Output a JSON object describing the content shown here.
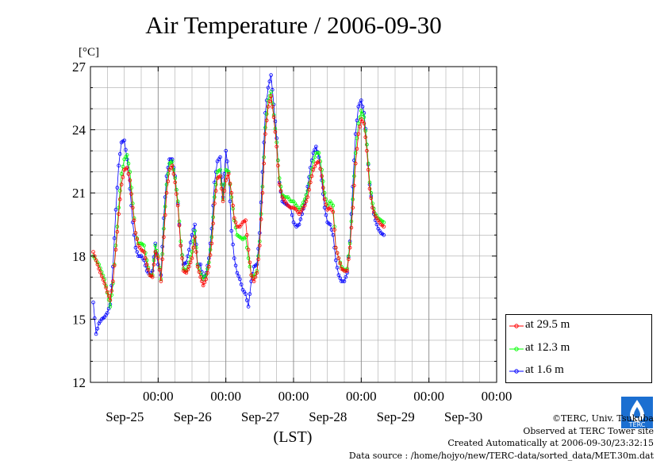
{
  "page": {
    "title": "Air Temperature / 2006-09-30"
  },
  "chart_data": {
    "type": "line",
    "title": "Air Temperature / 2006-09-30",
    "ylabel": "[°C]",
    "xlabel": "(LST)",
    "ylim": [
      12,
      27
    ],
    "yticks": [
      12,
      15,
      18,
      21,
      24,
      27
    ],
    "xlim": [
      -1,
      143
    ],
    "xticks": [
      {
        "x": 23,
        "time": "00:00",
        "date": "Sep-25"
      },
      {
        "x": 47,
        "time": "00:00",
        "date": "Sep-26"
      },
      {
        "x": 71,
        "time": "00:00",
        "date": "Sep-27"
      },
      {
        "x": 95,
        "time": "00:00",
        "date": "Sep-28"
      },
      {
        "x": 119,
        "time": "00:00",
        "date": "Sep-29"
      },
      {
        "x": 143,
        "time": "00:00",
        "date": "Sep-30"
      }
    ],
    "grid": true,
    "legend_position": "right",
    "series": [
      {
        "name": "at 29.5 m",
        "color": "#ff0000",
        "knots": [
          [
            0,
            18.2
          ],
          [
            2,
            17.4
          ],
          [
            4,
            16.7
          ],
          [
            6,
            15.9
          ],
          [
            7,
            16.8
          ],
          [
            8,
            18.3
          ],
          [
            9,
            20.0
          ],
          [
            10,
            21.4
          ],
          [
            11,
            22.1
          ],
          [
            12,
            22.2
          ],
          [
            13,
            21.6
          ],
          [
            14,
            20.3
          ],
          [
            15,
            19.1
          ],
          [
            16,
            18.5
          ],
          [
            17,
            18.3
          ],
          [
            18,
            18.2
          ],
          [
            19,
            17.6
          ],
          [
            20,
            17.1
          ],
          [
            21,
            17.0
          ],
          [
            22,
            18.2
          ],
          [
            23,
            17.9
          ],
          [
            24,
            16.8
          ],
          [
            25,
            18.9
          ],
          [
            26,
            21.0
          ],
          [
            27,
            22.1
          ],
          [
            28,
            22.3
          ],
          [
            29,
            21.5
          ],
          [
            30,
            20.4
          ],
          [
            31,
            18.5
          ],
          [
            32,
            17.3
          ],
          [
            33,
            17.2
          ],
          [
            34,
            17.5
          ],
          [
            35,
            17.9
          ],
          [
            36,
            18.9
          ],
          [
            37,
            17.5
          ],
          [
            38,
            17.0
          ],
          [
            39,
            16.6
          ],
          [
            40,
            16.9
          ],
          [
            41,
            17.5
          ],
          [
            42,
            18.6
          ],
          [
            43,
            20.5
          ],
          [
            44,
            21.7
          ],
          [
            45,
            21.8
          ],
          [
            46,
            20.6
          ],
          [
            47,
            21.6
          ],
          [
            48,
            21.9
          ],
          [
            49,
            21.0
          ],
          [
            50,
            19.8
          ],
          [
            51,
            19.4
          ],
          [
            52,
            19.4
          ],
          [
            53,
            19.6
          ],
          [
            54,
            19.7
          ],
          [
            55,
            18.3
          ],
          [
            56,
            17.1
          ],
          [
            57,
            16.8
          ],
          [
            58,
            17.2
          ],
          [
            59,
            18.5
          ],
          [
            60,
            21.0
          ],
          [
            61,
            23.8
          ],
          [
            62,
            25.1
          ],
          [
            63,
            25.6
          ],
          [
            64,
            24.6
          ],
          [
            65,
            23.2
          ],
          [
            66,
            21.4
          ],
          [
            67,
            20.8
          ],
          [
            68,
            20.6
          ],
          [
            69,
            20.4
          ],
          [
            70,
            20.3
          ],
          [
            71,
            20.3
          ],
          [
            72,
            20.2
          ],
          [
            73,
            20.0
          ],
          [
            74,
            20.2
          ],
          [
            75,
            20.4
          ],
          [
            76,
            20.8
          ],
          [
            77,
            21.5
          ],
          [
            78,
            22.1
          ],
          [
            79,
            22.4
          ],
          [
            80,
            22.5
          ],
          [
            81,
            21.8
          ],
          [
            82,
            20.7
          ],
          [
            83,
            20.2
          ],
          [
            84,
            20.3
          ],
          [
            85,
            20.1
          ],
          [
            86,
            18.4
          ],
          [
            87,
            17.9
          ],
          [
            88,
            17.4
          ],
          [
            89,
            17.3
          ],
          [
            90,
            17.3
          ],
          [
            91,
            18.4
          ],
          [
            92,
            20.3
          ],
          [
            93,
            22.4
          ],
          [
            94,
            23.8
          ],
          [
            95,
            24.5
          ],
          [
            96,
            24.3
          ],
          [
            97,
            23.0
          ],
          [
            98,
            21.2
          ],
          [
            99,
            20.3
          ],
          [
            100,
            19.9
          ],
          [
            101,
            19.7
          ],
          [
            102,
            19.5
          ],
          [
            103,
            19.4
          ]
        ]
      },
      {
        "name": "at 12.3 m",
        "color": "#00ff00",
        "knots": [
          [
            0,
            18.0
          ],
          [
            2,
            17.6
          ],
          [
            4,
            16.9
          ],
          [
            6,
            15.6
          ],
          [
            7,
            16.7
          ],
          [
            8,
            18.5
          ],
          [
            9,
            20.3
          ],
          [
            10,
            21.9
          ],
          [
            11,
            22.6
          ],
          [
            12,
            22.8
          ],
          [
            13,
            22.0
          ],
          [
            14,
            20.5
          ],
          [
            15,
            19.1
          ],
          [
            16,
            18.6
          ],
          [
            17,
            18.6
          ],
          [
            18,
            18.5
          ],
          [
            19,
            17.8
          ],
          [
            20,
            17.1
          ],
          [
            21,
            17.1
          ],
          [
            22,
            18.5
          ],
          [
            23,
            18.0
          ],
          [
            24,
            16.9
          ],
          [
            25,
            19.3
          ],
          [
            26,
            21.4
          ],
          [
            27,
            22.4
          ],
          [
            28,
            22.5
          ],
          [
            29,
            21.7
          ],
          [
            30,
            20.6
          ],
          [
            31,
            18.7
          ],
          [
            32,
            17.4
          ],
          [
            33,
            17.3
          ],
          [
            34,
            17.7
          ],
          [
            35,
            18.2
          ],
          [
            36,
            19.2
          ],
          [
            37,
            17.6
          ],
          [
            38,
            17.2
          ],
          [
            39,
            16.9
          ],
          [
            40,
            17.1
          ],
          [
            41,
            17.7
          ],
          [
            42,
            18.9
          ],
          [
            43,
            20.8
          ],
          [
            44,
            22.0
          ],
          [
            45,
            22.1
          ],
          [
            46,
            20.7
          ],
          [
            47,
            22.1
          ],
          [
            48,
            22.0
          ],
          [
            49,
            20.8
          ],
          [
            50,
            19.7
          ],
          [
            51,
            19.0
          ],
          [
            52,
            18.9
          ],
          [
            53,
            18.8
          ],
          [
            54,
            18.9
          ],
          [
            55,
            17.9
          ],
          [
            56,
            17.1
          ],
          [
            57,
            17.0
          ],
          [
            58,
            17.3
          ],
          [
            59,
            18.7
          ],
          [
            60,
            21.3
          ],
          [
            61,
            24.1
          ],
          [
            62,
            25.4
          ],
          [
            63,
            25.8
          ],
          [
            64,
            24.7
          ],
          [
            65,
            23.4
          ],
          [
            66,
            21.7
          ],
          [
            67,
            20.9
          ],
          [
            68,
            20.8
          ],
          [
            69,
            20.8
          ],
          [
            70,
            20.6
          ],
          [
            71,
            20.6
          ],
          [
            72,
            20.4
          ],
          [
            73,
            20.2
          ],
          [
            74,
            20.4
          ],
          [
            75,
            20.7
          ],
          [
            76,
            21.1
          ],
          [
            77,
            21.8
          ],
          [
            78,
            22.5
          ],
          [
            79,
            22.9
          ],
          [
            80,
            22.9
          ],
          [
            81,
            22.1
          ],
          [
            82,
            21.0
          ],
          [
            83,
            20.4
          ],
          [
            84,
            20.6
          ],
          [
            85,
            20.4
          ],
          [
            86,
            18.4
          ],
          [
            87,
            17.9
          ],
          [
            88,
            17.5
          ],
          [
            89,
            17.3
          ],
          [
            90,
            17.4
          ],
          [
            91,
            18.6
          ],
          [
            92,
            20.7
          ],
          [
            93,
            22.9
          ],
          [
            94,
            24.3
          ],
          [
            95,
            24.9
          ],
          [
            96,
            24.6
          ],
          [
            97,
            23.3
          ],
          [
            98,
            21.5
          ],
          [
            99,
            20.5
          ],
          [
            100,
            20.0
          ],
          [
            101,
            19.8
          ],
          [
            102,
            19.7
          ],
          [
            103,
            19.6
          ]
        ]
      },
      {
        "name": "at 1.6 m",
        "color": "#0000ff",
        "knots": [
          [
            0,
            15.8
          ],
          [
            1,
            14.3
          ],
          [
            2,
            14.8
          ],
          [
            3,
            15.0
          ],
          [
            4,
            15.1
          ],
          [
            5,
            15.3
          ],
          [
            6,
            15.7
          ],
          [
            7,
            17.5
          ],
          [
            8,
            20.2
          ],
          [
            9,
            22.3
          ],
          [
            10,
            23.4
          ],
          [
            11,
            23.5
          ],
          [
            12,
            22.6
          ],
          [
            13,
            21.2
          ],
          [
            14,
            19.6
          ],
          [
            15,
            18.4
          ],
          [
            16,
            18.0
          ],
          [
            17,
            18.0
          ],
          [
            18,
            17.8
          ],
          [
            19,
            17.3
          ],
          [
            20,
            17.1
          ],
          [
            21,
            17.3
          ],
          [
            22,
            18.6
          ],
          [
            23,
            17.6
          ],
          [
            24,
            17.1
          ],
          [
            25,
            19.8
          ],
          [
            26,
            21.8
          ],
          [
            27,
            22.6
          ],
          [
            28,
            22.6
          ],
          [
            29,
            21.8
          ],
          [
            30,
            20.5
          ],
          [
            31,
            18.5
          ],
          [
            32,
            17.6
          ],
          [
            33,
            17.7
          ],
          [
            34,
            18.3
          ],
          [
            35,
            19.0
          ],
          [
            36,
            19.5
          ],
          [
            37,
            17.6
          ],
          [
            38,
            17.6
          ],
          [
            39,
            16.9
          ],
          [
            40,
            17.2
          ],
          [
            41,
            17.9
          ],
          [
            42,
            19.3
          ],
          [
            43,
            21.5
          ],
          [
            44,
            22.5
          ],
          [
            45,
            22.7
          ],
          [
            46,
            20.8
          ],
          [
            47,
            23.0
          ],
          [
            48,
            22.0
          ],
          [
            49,
            19.2
          ],
          [
            50,
            17.9
          ],
          [
            51,
            17.2
          ],
          [
            52,
            16.9
          ],
          [
            53,
            16.4
          ],
          [
            54,
            16.2
          ],
          [
            55,
            15.6
          ],
          [
            56,
            16.8
          ],
          [
            57,
            17.5
          ],
          [
            58,
            17.6
          ],
          [
            59,
            19.1
          ],
          [
            60,
            22.0
          ],
          [
            61,
            24.8
          ],
          [
            62,
            26.0
          ],
          [
            63,
            26.6
          ],
          [
            64,
            25.2
          ],
          [
            65,
            23.6
          ],
          [
            66,
            21.5
          ],
          [
            67,
            20.6
          ],
          [
            68,
            20.5
          ],
          [
            69,
            20.4
          ],
          [
            70,
            20.3
          ],
          [
            71,
            19.6
          ],
          [
            72,
            19.4
          ],
          [
            73,
            19.5
          ],
          [
            74,
            20.0
          ],
          [
            75,
            20.5
          ],
          [
            76,
            21.3
          ],
          [
            77,
            22.2
          ],
          [
            78,
            22.9
          ],
          [
            79,
            23.2
          ],
          [
            80,
            22.7
          ],
          [
            81,
            21.6
          ],
          [
            82,
            20.3
          ],
          [
            83,
            19.6
          ],
          [
            84,
            19.5
          ],
          [
            85,
            19.0
          ],
          [
            86,
            17.8
          ],
          [
            87,
            17.1
          ],
          [
            88,
            16.8
          ],
          [
            89,
            16.8
          ],
          [
            90,
            17.2
          ],
          [
            91,
            18.7
          ],
          [
            92,
            21.3
          ],
          [
            93,
            23.8
          ],
          [
            94,
            25.1
          ],
          [
            95,
            25.4
          ],
          [
            96,
            24.8
          ],
          [
            97,
            23.3
          ],
          [
            98,
            21.4
          ],
          [
            99,
            20.3
          ],
          [
            100,
            19.7
          ],
          [
            101,
            19.3
          ],
          [
            102,
            19.1
          ],
          [
            103,
            19.0
          ]
        ]
      }
    ]
  },
  "legend": {
    "items": [
      {
        "label": "at 29.5 m",
        "color": "#ff0000"
      },
      {
        "label": "at 12.3 m",
        "color": "#00ff00"
      },
      {
        "label": "at 1.6 m",
        "color": "#0000ff"
      }
    ]
  },
  "footer": {
    "copyright": "©TERC, Univ. Tsukuba",
    "site": "Observed at TERC Tower site",
    "created": "Created Automatically at 2006-09-30/23:32:15",
    "source": "Data source : /home/hojyo/new/TERC-data/sorted_data/MET.30m.dat",
    "logo_text": "TERC"
  }
}
